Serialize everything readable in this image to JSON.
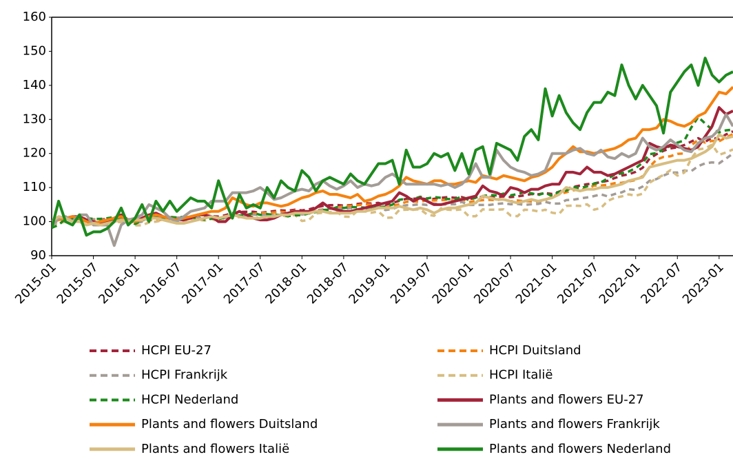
{
  "chart_data": {
    "type": "line",
    "categories": [
      "2015-01",
      null,
      null,
      null,
      null,
      null,
      "2015-07",
      null,
      null,
      null,
      null,
      null,
      "2016-01",
      null,
      null,
      null,
      null,
      null,
      "2016-07",
      null,
      null,
      null,
      null,
      null,
      "2017-01",
      null,
      null,
      null,
      null,
      null,
      "2017-07",
      null,
      null,
      null,
      null,
      null,
      "2018-01",
      null,
      null,
      null,
      null,
      null,
      "2018-07",
      null,
      null,
      null,
      null,
      null,
      "2019-01",
      null,
      null,
      null,
      null,
      null,
      "2019-07",
      null,
      null,
      null,
      null,
      null,
      "2020-01",
      null,
      null,
      null,
      null,
      null,
      "2020-07",
      null,
      null,
      null,
      null,
      null,
      "2021-01",
      null,
      null,
      null,
      null,
      null,
      "2021-07",
      null,
      null,
      null,
      null,
      null,
      "2022-01",
      null,
      null,
      null,
      null,
      null,
      "2022-07",
      null,
      null,
      null,
      null,
      null,
      "2023-01",
      null,
      null
    ],
    "ylim": [
      90,
      160
    ],
    "yticks": [
      90,
      100,
      110,
      120,
      130,
      140,
      150,
      160
    ],
    "grid": false,
    "series": [
      {
        "name": "HCPI EU-27",
        "color": "#a3243a",
        "dashed": true,
        "values": [
          99.5,
          100,
          100.5,
          100.7,
          100.8,
          100.8,
          100.6,
          100.6,
          100.8,
          100.9,
          100.7,
          100.8,
          99.8,
          100.2,
          100.9,
          101,
          101.3,
          101.3,
          101.1,
          101.2,
          101.4,
          101.6,
          101.4,
          101.6,
          101.5,
          101.9,
          102.5,
          102.8,
          102.9,
          102.9,
          102.6,
          102.8,
          103.1,
          103.3,
          103.2,
          103.5,
          103.3,
          103.6,
          104.2,
          104.6,
          104.8,
          104.9,
          104.7,
          104.8,
          105.2,
          105.4,
          105.3,
          105.5,
          104.9,
          105.5,
          106.1,
          106.7,
          106.7,
          106.9,
          106.5,
          106.7,
          107,
          107.2,
          107,
          107.2,
          106.6,
          107,
          107.3,
          107.2,
          107.2,
          107.4,
          107.2,
          107.4,
          107.7,
          108.1,
          108,
          108.4,
          108.1,
          108.8,
          109.6,
          110.2,
          110.6,
          111,
          111.2,
          111.6,
          112,
          112.8,
          113.5,
          113.9,
          114.6,
          115.8,
          118.5,
          119.8,
          120.8,
          121.5,
          121.8,
          122.5,
          123.5,
          124.5,
          123.4,
          124.7,
          124.2,
          125.6,
          126.5
        ]
      },
      {
        "name": "HCPI Duitsland",
        "color": "#f5820f",
        "dashed": true,
        "values": [
          99.5,
          100.2,
          100.5,
          100.6,
          100.5,
          100.6,
          100.7,
          100.6,
          100.4,
          100.4,
          100.3,
          100.4,
          99.6,
          100.1,
          100.5,
          100.3,
          100.6,
          100.8,
          101.1,
          101.1,
          101.1,
          101.3,
          101.1,
          101.6,
          101.1,
          101.6,
          101.9,
          101.9,
          102.1,
          102.3,
          102.6,
          102.6,
          102.7,
          102.9,
          102.6,
          103.2,
          102.4,
          102.9,
          103.3,
          103.6,
          104,
          104.1,
          104.5,
          104.6,
          104.8,
          105.1,
          105,
          104.9,
          104.1,
          104.6,
          105.1,
          105.8,
          105.9,
          105.8,
          106.3,
          106.2,
          106.3,
          106.4,
          106.1,
          106.7,
          105.7,
          106.1,
          106.3,
          106.4,
          106.3,
          106.6,
          106,
          106.2,
          106,
          105.9,
          105.9,
          106.3,
          107.3,
          108.1,
          108.6,
          109.2,
          109.4,
          109.6,
          110.6,
          110.6,
          110.8,
          111.3,
          111.4,
          111.8,
          112.2,
          113.3,
          116.1,
          118.2,
          119,
          119.2,
          119.9,
          120,
          122.4,
          124,
          123.2,
          123.7,
          123.6,
          124.7,
          125.7
        ]
      },
      {
        "name": "HCPI Frankrijk",
        "color": "#a39c96",
        "dashed": true,
        "values": [
          99.6,
          100.1,
          100.8,
          100.9,
          101,
          100.9,
          100.6,
          100.5,
          100.4,
          100.6,
          100.5,
          100.5,
          99.6,
          100,
          100.6,
          100.9,
          101.2,
          101.3,
          101.1,
          101.1,
          101.1,
          101.3,
          101.2,
          101.3,
          100.9,
          101.1,
          101.8,
          101.9,
          101.9,
          102.1,
          101.9,
          102.2,
          102,
          102.3,
          102.3,
          102.5,
          102.1,
          102.3,
          103.2,
          103.5,
          103.8,
          103.9,
          103.7,
          104,
          103.6,
          103.8,
          103.7,
          104.3,
          103.4,
          103.7,
          104.5,
          104.8,
          104.9,
          105.1,
          104.9,
          105.3,
          105,
          105.1,
          105.1,
          105.8,
          104.9,
          104.9,
          104.9,
          104.9,
          105.2,
          105.4,
          105.1,
          105.2,
          104.9,
          105.1,
          105.2,
          105.8,
          105.3,
          105.3,
          106.3,
          106.4,
          106.8,
          107.1,
          107.5,
          108,
          107.4,
          108.1,
          108.6,
          109.5,
          109.3,
          110.3,
          112,
          112.5,
          113.5,
          114.4,
          114.4,
          115,
          114.8,
          116.3,
          117.1,
          117.4,
          117.1,
          118.5,
          120
        ]
      },
      {
        "name": "HCPI Italië",
        "color": "#d8bd80",
        "dashed": true,
        "values": [
          99.3,
          99.5,
          100,
          100.1,
          100.1,
          100.2,
          99.9,
          99.6,
          100.6,
          100.1,
          99.8,
          100.3,
          98.9,
          98.9,
          99.8,
          100,
          100.4,
          100.7,
          100,
          99.8,
          100.8,
          100.6,
          100.3,
          100.8,
          100,
          100.4,
          101.3,
          101.3,
          101.5,
          101.8,
          100.8,
          100.6,
          102.1,
          101.8,
          101.5,
          102,
          100.2,
          100.5,
          102.4,
          102.6,
          102.8,
          102.8,
          101.5,
          101.4,
          103.2,
          103,
          102.6,
          103,
          101.1,
          101.2,
          103.4,
          103.5,
          103.5,
          103.6,
          102.1,
          101.7,
          103.9,
          103.5,
          103.4,
          103.6,
          101.6,
          101.6,
          103.6,
          103.5,
          103.5,
          103.6,
          101.8,
          101.6,
          103.5,
          103.4,
          103,
          103.5,
          102.6,
          102.3,
          104.6,
          104.7,
          104.6,
          105.1,
          103.5,
          104,
          106.1,
          107,
          107.4,
          108,
          107.6,
          108.2,
          111.4,
          112.7,
          113.7,
          115.1,
          113.5,
          114.4,
          118.5,
          121.2,
          121.5,
          122.6,
          119.6,
          120.3,
          121.2
        ]
      },
      {
        "name": "HCPI Nederland",
        "color": "#1d8a1d",
        "dashed": true,
        "values": [
          98.2,
          99,
          100.9,
          101,
          100.8,
          101,
          100.8,
          100.8,
          101,
          101.3,
          100.6,
          100.4,
          99.3,
          100.3,
          101.1,
          101.2,
          101.1,
          101.4,
          101.2,
          101.4,
          101.2,
          101.1,
          100.6,
          100.9,
          100.7,
          101.3,
          101.6,
          101.8,
          101.9,
          102.5,
          102,
          102.2,
          102,
          102,
          101.6,
          101.9,
          101.9,
          102.4,
          102.8,
          103.4,
          103.5,
          104.2,
          104,
          104.3,
          104.2,
          104.1,
          103.7,
          104.2,
          104.4,
          105,
          106.4,
          106.7,
          106.6,
          107.3,
          106.8,
          107.2,
          107,
          106.6,
          106.6,
          107.3,
          106.3,
          107.1,
          107.5,
          107.8,
          107.7,
          108.2,
          107.7,
          108.1,
          108.6,
          108.3,
          107.8,
          108.5,
          107.5,
          108.8,
          109.1,
          110.2,
          109.8,
          110.4,
          111.1,
          111.5,
          112.7,
          113.8,
          114.2,
          114.7,
          115.7,
          117.3,
          119.8,
          120.1,
          121.2,
          122.2,
          123.2,
          123.8,
          127.6,
          130.7,
          128.8,
          127,
          126.2,
          126.8,
          127
        ]
      },
      {
        "name": "Plants and flowers EU-27",
        "color": "#a3243a",
        "dashed": false,
        "values": [
          99.5,
          101,
          101,
          101.5,
          101.5,
          100.5,
          100,
          99.5,
          99.8,
          101,
          102,
          100.5,
          100,
          101,
          102,
          102.5,
          101.5,
          101,
          100.5,
          100.5,
          101,
          102,
          102,
          101.5,
          100,
          100,
          102,
          103,
          102,
          101,
          100.5,
          100.5,
          101,
          102,
          102.5,
          103,
          103,
          103,
          104,
          105.5,
          104,
          103.5,
          103,
          103,
          103.5,
          104,
          104.5,
          105,
          105.5,
          106,
          108.5,
          107.5,
          106,
          107,
          106,
          105,
          105,
          105.5,
          106,
          106.5,
          107,
          107.5,
          110.5,
          109,
          108.5,
          107.5,
          110,
          109.5,
          108.5,
          109.5,
          109.5,
          110.5,
          111,
          111,
          114.5,
          114.5,
          114,
          116,
          114.5,
          114.5,
          113.5,
          114,
          115,
          116,
          117,
          118,
          123,
          122,
          121.5,
          122.5,
          122,
          121.5,
          121,
          122,
          125,
          128,
          133.5,
          131.5,
          132.5
        ]
      },
      {
        "name": "Plants and flowers Duitsland",
        "color": "#f5820f",
        "dashed": false,
        "values": [
          100,
          100.5,
          101,
          101.5,
          101,
          100,
          99.5,
          100,
          100.5,
          101,
          101.5,
          100.5,
          100,
          100.5,
          101.5,
          102,
          101.5,
          101,
          100.5,
          101,
          101.5,
          102,
          102.5,
          103,
          103,
          104,
          107,
          106,
          105,
          104.5,
          105.5,
          105.5,
          105,
          104.5,
          105,
          106,
          107,
          107.5,
          108.5,
          109,
          108,
          108,
          107.5,
          107,
          108,
          106,
          106.5,
          107.5,
          108,
          109,
          110.5,
          113,
          112,
          111.5,
          111,
          112,
          112,
          111,
          111,
          111.5,
          112,
          111.5,
          113.5,
          113,
          112.5,
          113.5,
          113,
          112.5,
          112,
          113,
          113.5,
          114.5,
          116,
          118.5,
          120,
          122,
          120.5,
          120.5,
          120,
          120.5,
          121,
          121.5,
          122.5,
          124,
          124.5,
          127,
          127,
          127.5,
          130,
          129.5,
          128.5,
          128,
          129,
          131,
          132,
          135,
          138,
          137.5,
          139.5
        ]
      },
      {
        "name": "Plants and flowers Frankrijk",
        "color": "#a39c96",
        "dashed": false,
        "values": [
          98.5,
          101,
          101.5,
          100,
          102,
          102,
          99,
          99,
          99,
          93,
          99,
          100.5,
          101,
          102,
          105,
          104,
          103,
          101,
          100,
          101.5,
          103,
          103.5,
          104,
          106,
          106,
          106,
          108.5,
          108.5,
          108.5,
          109,
          110,
          108.5,
          106.5,
          107,
          108,
          109,
          109.5,
          109,
          111,
          112,
          110.5,
          109.5,
          110.5,
          112,
          110,
          111,
          110.5,
          111,
          113,
          114,
          112.5,
          111,
          111,
          111,
          111,
          111,
          110.5,
          111,
          110,
          111,
          113,
          117,
          113,
          113,
          121,
          118,
          116,
          115,
          114.5,
          113.5,
          114,
          115,
          120,
          120,
          120,
          121,
          121.5,
          120,
          119.5,
          121,
          119,
          118.5,
          120,
          119,
          120,
          124.5,
          122,
          121,
          122,
          124,
          122.5,
          121,
          120.5,
          123,
          124.5,
          125,
          127,
          131.5,
          128
        ]
      },
      {
        "name": "Plants and flowers Italië",
        "color": "#d8bd80",
        "dashed": false,
        "values": [
          100,
          101.5,
          101,
          100,
          100,
          99,
          99.5,
          99,
          99.5,
          100,
          100.5,
          100,
          100.5,
          100.5,
          101,
          101,
          100.5,
          100,
          99.5,
          99.5,
          100,
          100.5,
          101,
          101.5,
          101,
          101.5,
          102,
          101.5,
          101,
          101,
          101,
          101.5,
          101.5,
          102,
          102,
          102.5,
          102.5,
          102.5,
          103,
          103,
          102.5,
          102.5,
          102.5,
          102.5,
          103,
          103,
          103.5,
          104,
          104,
          104,
          104.5,
          104,
          103.5,
          104,
          103.5,
          102.5,
          103.5,
          104,
          104,
          104.5,
          105,
          105.5,
          107.5,
          107,
          106.5,
          106.5,
          106,
          105.5,
          106,
          106.5,
          106,
          106.5,
          107,
          108,
          110,
          109.5,
          109,
          109.5,
          109.5,
          110,
          110,
          110.5,
          111,
          112,
          112.5,
          113,
          116,
          116.5,
          117,
          117.5,
          118,
          118,
          118.5,
          119.5,
          120.5,
          122,
          125.5,
          124.5,
          125
        ]
      },
      {
        "name": "Plants and flowers Nederland",
        "color": "#1d8a1d",
        "dashed": false,
        "values": [
          98,
          106,
          100,
          99,
          102,
          96,
          97,
          97,
          98,
          100,
          104,
          99,
          101,
          105,
          100,
          106,
          103,
          106,
          103,
          105,
          107,
          106,
          106,
          104,
          112,
          106,
          101,
          108,
          104,
          105,
          104,
          110,
          107,
          112,
          110,
          109,
          115,
          113,
          109,
          112,
          113,
          112,
          111,
          114,
          112,
          111,
          114,
          117,
          117,
          118,
          111,
          121,
          116,
          116,
          117,
          120,
          119,
          120,
          115,
          120,
          114,
          121,
          122,
          114,
          123,
          122,
          121,
          118,
          125,
          127,
          124,
          139,
          131,
          137,
          132,
          129,
          127,
          132,
          135,
          135,
          138,
          137,
          146,
          140,
          136,
          140,
          137,
          134,
          126,
          138,
          141,
          144,
          146,
          140,
          148,
          143,
          141,
          143,
          144
        ]
      }
    ]
  }
}
